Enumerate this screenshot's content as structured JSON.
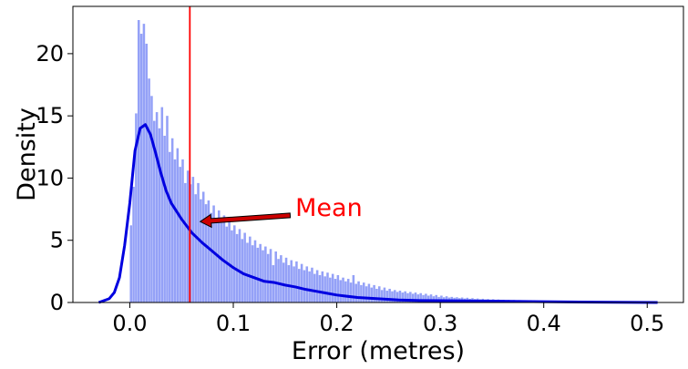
{
  "chart_data": {
    "type": "bar",
    "subtype": "histogram-with-kde",
    "title": "",
    "xlabel": "Error (metres)",
    "ylabel": "Density",
    "xlim": [
      -0.055,
      0.535
    ],
    "ylim": [
      0,
      23.8
    ],
    "xticks": [
      0.0,
      0.1,
      0.2,
      0.3,
      0.4,
      0.5
    ],
    "xtick_labels": [
      "0.0",
      "0.1",
      "0.2",
      "0.3",
      "0.4",
      "0.5"
    ],
    "yticks": [
      0,
      5,
      10,
      15,
      20
    ],
    "ytick_labels": [
      "0",
      "5",
      "10",
      "15",
      "20"
    ],
    "histogram": {
      "color": "#8e9cf7",
      "bin_width": 0.0025,
      "x_start": 0.0,
      "values": [
        6.2,
        9.3,
        15.2,
        22.7,
        21.6,
        22.4,
        20.8,
        18.0,
        16.6,
        14.6,
        15.3,
        14.0,
        15.7,
        13.4,
        15.0,
        12.1,
        13.2,
        11.5,
        12.4,
        10.9,
        11.5,
        9.6,
        10.6,
        9.5,
        10.1,
        8.7,
        9.6,
        8.3,
        8.9,
        7.9,
        8.2,
        7.2,
        7.8,
        6.8,
        7.4,
        6.4,
        7.0,
        6.1,
        6.6,
        5.8,
        6.2,
        5.5,
        5.9,
        5.1,
        5.6,
        4.8,
        5.3,
        4.6,
        5.0,
        4.4,
        4.7,
        4.2,
        4.5,
        3.9,
        4.3,
        3.0,
        4.1,
        3.5,
        3.8,
        3.2,
        3.6,
        3.0,
        3.4,
        2.9,
        3.3,
        2.7,
        3.1,
        2.6,
        2.9,
        2.5,
        2.8,
        2.3,
        2.6,
        2.2,
        2.5,
        2.1,
        2.4,
        2.0,
        2.3,
        1.9,
        2.2,
        1.8,
        2.0,
        1.7,
        1.9,
        1.6,
        2.2,
        1.5,
        1.7,
        1.4,
        1.6,
        1.3,
        1.5,
        1.2,
        1.4,
        1.1,
        1.3,
        1.0,
        1.2,
        0.95,
        1.1,
        0.9,
        1.0,
        0.85,
        0.95,
        0.8,
        0.9,
        0.75,
        0.85,
        0.7,
        0.8,
        0.65,
        0.75,
        0.6,
        0.7,
        0.55,
        0.65,
        0.5,
        0.6,
        0.45,
        0.55,
        0.42,
        0.5,
        0.4,
        0.45,
        0.38,
        0.42,
        0.35,
        0.4,
        0.32,
        0.38,
        0.3,
        0.35,
        0.28,
        0.32,
        0.26,
        0.3,
        0.25,
        0.28,
        0.23,
        0.26,
        0.22,
        0.24,
        0.2,
        0.22,
        0.19,
        0.21,
        0.18,
        0.2,
        0.17,
        0.19,
        0.16,
        0.18,
        0.15,
        0.17,
        0.14,
        0.16,
        0.13,
        0.15,
        0.12,
        0.14,
        0.12,
        0.13,
        0.11,
        0.12,
        0.1,
        0.12,
        0.1,
        0.11,
        0.09,
        0.1,
        0.09,
        0.1,
        0.08,
        0.09,
        0.08,
        0.09,
        0.07,
        0.08,
        0.07,
        0.08,
        0.06,
        0.07,
        0.06,
        0.07,
        0.05,
        0.06,
        0.05,
        0.06,
        0.05,
        0.05,
        0.04,
        0.05,
        0.04,
        0.05,
        0.04,
        0.04,
        0.03,
        0.04,
        0.03,
        0.04,
        0.03,
        0.03,
        0.03,
        0.03,
        0.02
      ]
    },
    "kde": {
      "color": "#0000e0",
      "x": [
        -0.03,
        -0.02,
        -0.015,
        -0.01,
        -0.005,
        0.0,
        0.005,
        0.01,
        0.015,
        0.02,
        0.025,
        0.03,
        0.035,
        0.04,
        0.05,
        0.06,
        0.07,
        0.08,
        0.09,
        0.1,
        0.11,
        0.12,
        0.13,
        0.14,
        0.15,
        0.16,
        0.17,
        0.18,
        0.19,
        0.2,
        0.22,
        0.24,
        0.26,
        0.28,
        0.3,
        0.33,
        0.36,
        0.4,
        0.45,
        0.51
      ],
      "values": [
        0.0,
        0.3,
        0.8,
        2.0,
        4.6,
        8.0,
        12.2,
        14.0,
        14.3,
        13.5,
        12.0,
        10.4,
        9.0,
        8.0,
        6.7,
        5.6,
        4.8,
        4.1,
        3.4,
        2.8,
        2.3,
        2.0,
        1.7,
        1.6,
        1.4,
        1.25,
        1.05,
        0.9,
        0.75,
        0.6,
        0.4,
        0.3,
        0.2,
        0.16,
        0.15,
        0.12,
        0.1,
        0.06,
        0.03,
        0.0
      ]
    },
    "mean": {
      "x": 0.058,
      "color": "#ff0000"
    },
    "annotation": {
      "text": "Mean",
      "color": "#ff0000",
      "text_x": 0.16,
      "text_y": 7.6,
      "arrow_from": [
        0.155,
        7.0
      ],
      "arrow_to": [
        0.068,
        6.5
      ]
    }
  }
}
